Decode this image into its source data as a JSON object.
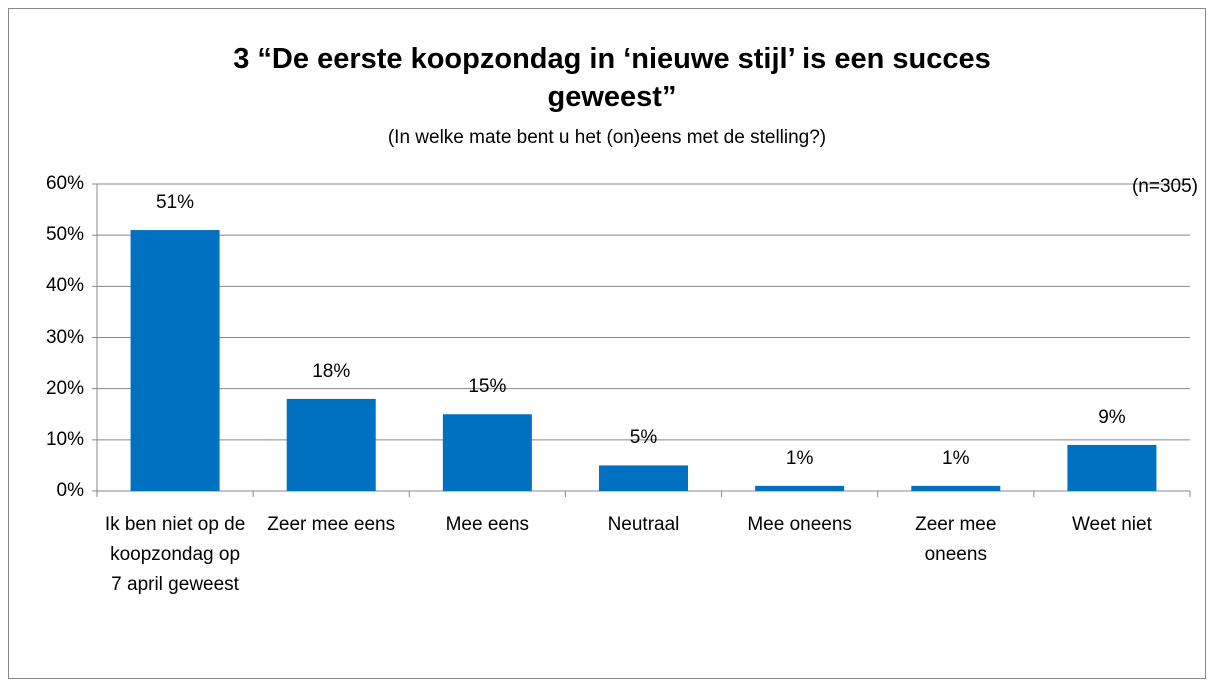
{
  "chart_data": {
    "type": "bar",
    "title": "3 “De eerste koopzondag in ‘nieuwe stijl’ is een succes geweest”",
    "subtitle": "(In welke mate bent u het (on)eens met de stelling?)",
    "annotation": "(n=305)",
    "categories": [
      "Ik ben niet op de koopzondag op 7 april geweest",
      "Zeer mee eens",
      "Mee eens",
      "Neutraal",
      "Mee oneens",
      "Zeer mee oneens",
      "Weet niet"
    ],
    "values": [
      51,
      18,
      15,
      5,
      1,
      1,
      9
    ],
    "value_labels": [
      "51%",
      "18%",
      "15%",
      "5%",
      "1%",
      "1%",
      "9%"
    ],
    "color": "#0070c0",
    "ylim": [
      0,
      60
    ],
    "yticks": [
      {
        "value": 0,
        "label": "0%"
      },
      {
        "value": 10,
        "label": "10%"
      },
      {
        "value": 20,
        "label": "20%"
      },
      {
        "value": 30,
        "label": "30%"
      },
      {
        "value": 40,
        "label": "40%"
      },
      {
        "value": 50,
        "label": "50%"
      },
      {
        "value": 60,
        "label": "60%"
      }
    ],
    "grid": true
  }
}
